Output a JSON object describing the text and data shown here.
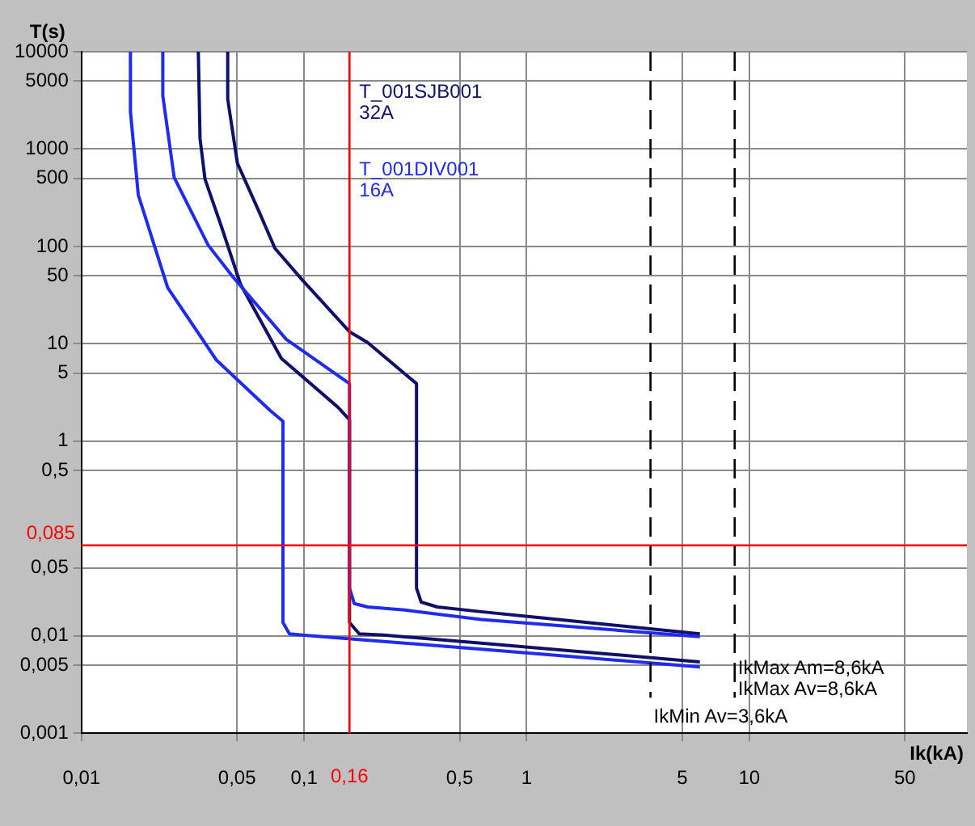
{
  "chart_data": {
    "type": "line",
    "xlabel": "Ik(kA)",
    "ylabel": "T(s)",
    "log": "xy",
    "grid": true,
    "legend": false,
    "marker": "none",
    "line_style": "solid",
    "xlim": [
      0.01,
      95
    ],
    "ylim": [
      0.001,
      10000
    ],
    "xticks": [
      {
        "value": 0.01,
        "label": "0,01"
      },
      {
        "value": 0.05,
        "label": "0,05"
      },
      {
        "value": 0.1,
        "label": "0,1"
      },
      {
        "value": 0.5,
        "label": "0,5"
      },
      1,
      5,
      10,
      50
    ],
    "yticks": [
      {
        "value": 0.001,
        "label": "0,001"
      },
      {
        "value": 0.005,
        "label": "0,005"
      },
      {
        "value": 0.01,
        "label": "0,01"
      },
      {
        "value": 0.05,
        "label": "0,05"
      },
      {
        "value": 0.5,
        "label": "0,5"
      },
      1,
      5,
      10,
      50,
      100,
      500,
      1000,
      5000,
      10000
    ],
    "series": [
      {
        "color": "#1f2cf0",
        "x": [
          0.0166,
          0.0166,
          0.018,
          0.0244,
          0.0404,
          0.0703,
          0.0804,
          0.0804,
          0.086,
          0.098,
          0.625,
          6
        ],
        "values": [
          10000,
          2430,
          339,
          37.8,
          6.8,
          2.07,
          1.6,
          0.0137,
          0.0105,
          0.0102,
          0.0073,
          0.0048
        ]
      },
      {
        "name": "T_001DIV001 16A",
        "color": "#1f2cf0",
        "x": [
          0.0232,
          0.0232,
          0.0261,
          0.0371,
          0.0478,
          0.0832,
          0.16,
          0.16,
          0.168,
          0.193,
          0.284,
          0.625,
          6
        ],
        "values": [
          10000,
          3530,
          510,
          103,
          49,
          11.1,
          3.9,
          0.031,
          0.0215,
          0.0198,
          0.0184,
          0.0147,
          0.0098
        ]
      },
      {
        "color": "#10106b",
        "x": [
          0.0335,
          0.0341,
          0.0359,
          0.0425,
          0.0519,
          0.0791,
          0.142,
          0.16,
          0.16,
          0.177,
          0.228,
          0.625,
          6
        ],
        "values": [
          10000,
          1290,
          491,
          161,
          40.6,
          7.08,
          2.23,
          1.66,
          0.0137,
          0.0105,
          0.0102,
          0.0084,
          0.0054
        ]
      },
      {
        "name": "T_001SJB001 32A",
        "color": "#10106b",
        "x": [
          0.0454,
          0.0454,
          0.0502,
          0.0625,
          0.074,
          0.098,
          0.16,
          0.193,
          0.32,
          0.32,
          0.336,
          0.397,
          0.625,
          6
        ],
        "values": [
          10000,
          3270,
          713,
          233,
          95.7,
          45.5,
          13.3,
          10.3,
          3.9,
          0.031,
          0.0222,
          0.0198,
          0.0177,
          0.0105
        ]
      }
    ],
    "ref_lines": [
      {
        "axis": "x",
        "value": 0.16,
        "label": "0,16",
        "color": "#ff0000",
        "line_style": "solid"
      },
      {
        "axis": "y",
        "value": 0.085,
        "label": "0,085",
        "color": "#ff0000",
        "line_style": "solid"
      },
      {
        "axis": "x",
        "value": 3.6,
        "label": "IkMin Av=3,6kA",
        "color": "#000000",
        "line_style": "dashed"
      },
      {
        "axis": "x",
        "value": 8.6,
        "label": "IkMax Am=8,6kA",
        "color": "#000000",
        "line_style": "dashed"
      }
    ],
    "annotations": [
      {
        "text": "IkMax Av=8,6kA",
        "x": 8.6,
        "y": 0.0028
      }
    ]
  }
}
